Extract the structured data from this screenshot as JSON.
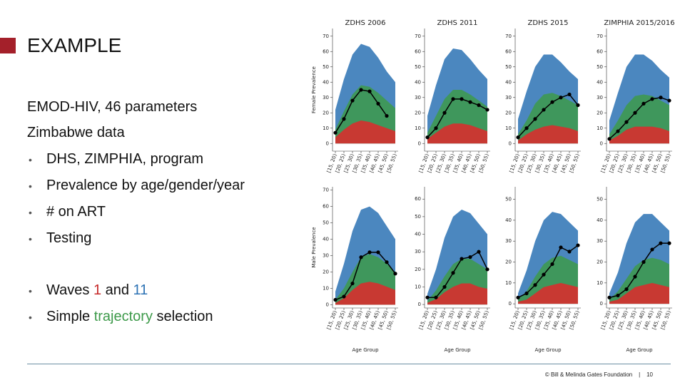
{
  "slide": {
    "title": "EXAMPLE",
    "lines": [
      "EMOD-HIV, 46 parameters",
      "Zimbabwe data"
    ],
    "bullets": [
      "DHS, ZIMPHIA, program",
      "Prevalence by age/gender/year",
      "# on ART",
      "Testing"
    ],
    "waves": [
      "Waves ",
      "1",
      " and ",
      "11"
    ],
    "selection": [
      "Simple ",
      "trajectory",
      " selection"
    ]
  },
  "footer": {
    "org": "© Bill & Melinda Gates Foundation",
    "sep": "|",
    "page": "10"
  },
  "chart_data": [
    {
      "type": "line",
      "title": "ZDHS 2006",
      "ylabel": "Female Prevalence",
      "categories": [
        "[15, 20)",
        "[20, 25)",
        "[25, 30)",
        "[30, 35)",
        "[35, 40)",
        "[40, 45)",
        "[45, 50)",
        "[50, 55)"
      ],
      "ylim": [
        -5,
        75
      ],
      "yticks": [
        0,
        10,
        20,
        30,
        40,
        50,
        60,
        70
      ],
      "series": [
        {
          "kind": "area",
          "color": "#2c72b4",
          "values": [
            22,
            42,
            58,
            65,
            63,
            56,
            47,
            40
          ]
        },
        {
          "kind": "area",
          "color": "#3d9a4a",
          "values": [
            9,
            21,
            32,
            38,
            37,
            33,
            28,
            23
          ]
        },
        {
          "kind": "area",
          "color": "#e0282a",
          "values": [
            4,
            9,
            13,
            15,
            14,
            12,
            10,
            8
          ]
        },
        {
          "kind": "points",
          "color": "#000000",
          "values": [
            7,
            16,
            28,
            35,
            34,
            26,
            18,
            null
          ]
        }
      ]
    },
    {
      "type": "line",
      "title": "ZDHS 2011",
      "categories": [
        "[15, 20)",
        "[20, 25)",
        "[25, 30)",
        "[30, 35)",
        "[35, 40)",
        "[40, 45)",
        "[45, 50)",
        "[50, 55)"
      ],
      "ylim": [
        -5,
        75
      ],
      "yticks": [
        0,
        10,
        20,
        30,
        40,
        50,
        60,
        70
      ],
      "series": [
        {
          "kind": "area",
          "color": "#2c72b4",
          "values": [
            18,
            38,
            55,
            62,
            61,
            55,
            48,
            42
          ]
        },
        {
          "kind": "area",
          "color": "#3d9a4a",
          "values": [
            7,
            18,
            29,
            35,
            35,
            32,
            28,
            24
          ]
        },
        {
          "kind": "area",
          "color": "#e0282a",
          "values": [
            3,
            7,
            11,
            13,
            13,
            12,
            10,
            8
          ]
        },
        {
          "kind": "points",
          "color": "#000000",
          "values": [
            4,
            10,
            20,
            29,
            29,
            27,
            25,
            22
          ]
        }
      ]
    },
    {
      "type": "line",
      "title": "ZDHS 2015",
      "categories": [
        "[15, 20)",
        "[20, 25)",
        "[25, 30)",
        "[30, 35)",
        "[35, 40)",
        "[40, 45)",
        "[45, 50)",
        "[50, 55)"
      ],
      "ylim": [
        -5,
        75
      ],
      "yticks": [
        0,
        10,
        20,
        30,
        40,
        50,
        60,
        70
      ],
      "series": [
        {
          "kind": "area",
          "color": "#2c72b4",
          "values": [
            16,
            34,
            50,
            58,
            58,
            53,
            47,
            42
          ]
        },
        {
          "kind": "area",
          "color": "#3d9a4a",
          "values": [
            6,
            15,
            26,
            32,
            33,
            31,
            28,
            25
          ]
        },
        {
          "kind": "area",
          "color": "#e0282a",
          "values": [
            2,
            6,
            9,
            11,
            12,
            11,
            10,
            8
          ]
        },
        {
          "kind": "points",
          "color": "#000000",
          "values": [
            4,
            10,
            16,
            22,
            27,
            30,
            32,
            25
          ]
        }
      ]
    },
    {
      "type": "line",
      "title": "ZIMPHIA 2015/2016",
      "categories": [
        "[15, 20)",
        "[20, 25)",
        "[25, 30)",
        "[30, 35)",
        "[35, 40)",
        "[40, 45)",
        "[45, 50)",
        "[50, 55)"
      ],
      "ylim": [
        -5,
        75
      ],
      "yticks": [
        0,
        10,
        20,
        30,
        40,
        50,
        60,
        70
      ],
      "series": [
        {
          "kind": "area",
          "color": "#2c72b4",
          "values": [
            15,
            33,
            50,
            58,
            58,
            54,
            48,
            43
          ]
        },
        {
          "kind": "area",
          "color": "#3d9a4a",
          "values": [
            6,
            15,
            25,
            31,
            32,
            31,
            28,
            25
          ]
        },
        {
          "kind": "area",
          "color": "#e0282a",
          "values": [
            2,
            5,
            9,
            11,
            11,
            11,
            10,
            8
          ]
        },
        {
          "kind": "points",
          "color": "#000000",
          "values": [
            3,
            8,
            14,
            20,
            26,
            29,
            30,
            28
          ]
        }
      ]
    },
    {
      "type": "line",
      "ylabel": "Male Prevalence",
      "xlabel": "Age Group",
      "categories": [
        "[15, 20)",
        "[20, 25)",
        "[25, 30)",
        "[30, 35)",
        "[35, 40)",
        "[40, 45)",
        "[45, 50)",
        "[50, 55)"
      ],
      "ylim": [
        -2,
        72
      ],
      "yticks": [
        0,
        10,
        20,
        30,
        40,
        50,
        60,
        70
      ],
      "series": [
        {
          "kind": "area",
          "color": "#2c72b4",
          "values": [
            8,
            25,
            45,
            58,
            60,
            56,
            48,
            40
          ]
        },
        {
          "kind": "area",
          "color": "#3d9a4a",
          "values": [
            3,
            10,
            20,
            29,
            31,
            29,
            25,
            20
          ]
        },
        {
          "kind": "area",
          "color": "#e0282a",
          "values": [
            1,
            4,
            9,
            13,
            14,
            13,
            11,
            9
          ]
        },
        {
          "kind": "points",
          "color": "#000000",
          "values": [
            3,
            5,
            13,
            29,
            32,
            32,
            26,
            19
          ]
        }
      ]
    },
    {
      "type": "line",
      "xlabel": "Age Group",
      "categories": [
        "[15, 20)",
        "[20, 25)",
        "[25, 30)",
        "[30, 35)",
        "[35, 40)",
        "[40, 45)",
        "[45, 50)",
        "[50, 55)"
      ],
      "ylim": [
        -2,
        67
      ],
      "yticks": [
        0,
        10,
        20,
        30,
        40,
        50,
        60
      ],
      "series": [
        {
          "kind": "area",
          "color": "#2c72b4",
          "values": [
            6,
            20,
            38,
            50,
            54,
            52,
            46,
            40
          ]
        },
        {
          "kind": "area",
          "color": "#3d9a4a",
          "values": [
            2,
            8,
            16,
            23,
            26,
            26,
            23,
            20
          ]
        },
        {
          "kind": "area",
          "color": "#e0282a",
          "values": [
            1,
            3,
            7,
            10,
            12,
            12,
            10,
            9
          ]
        },
        {
          "kind": "points",
          "color": "#000000",
          "values": [
            4,
            4,
            10,
            18,
            26,
            27,
            30,
            20
          ]
        }
      ]
    },
    {
      "type": "line",
      "xlabel": "Age Group",
      "categories": [
        "[15, 20)",
        "[20, 25)",
        "[25, 30)",
        "[30, 35)",
        "[35, 40)",
        "[40, 45)",
        "[45, 50)",
        "[50, 55)"
      ],
      "ylim": [
        -2,
        56
      ],
      "yticks": [
        0,
        10,
        20,
        30,
        40,
        50
      ],
      "series": [
        {
          "kind": "area",
          "color": "#2c72b4",
          "values": [
            5,
            16,
            30,
            40,
            44,
            43,
            39,
            35
          ]
        },
        {
          "kind": "area",
          "color": "#3d9a4a",
          "values": [
            2,
            6,
            13,
            19,
            22,
            23,
            21,
            19
          ]
        },
        {
          "kind": "area",
          "color": "#e0282a",
          "values": [
            1,
            2,
            5,
            8,
            9,
            10,
            9,
            8
          ]
        },
        {
          "kind": "points",
          "color": "#000000",
          "values": [
            3,
            5,
            9,
            14,
            19,
            27,
            25,
            28
          ]
        }
      ]
    },
    {
      "type": "line",
      "xlabel": "Age Group",
      "categories": [
        "[15, 20)",
        "[20, 25)",
        "[25, 30)",
        "[30, 35)",
        "[35, 40)",
        "[40, 45)",
        "[45, 50)",
        "[50, 55)"
      ],
      "ylim": [
        -2,
        56
      ],
      "yticks": [
        0,
        10,
        20,
        30,
        40,
        50
      ],
      "series": [
        {
          "kind": "area",
          "color": "#2c72b4",
          "values": [
            5,
            15,
            29,
            39,
            43,
            43,
            39,
            35
          ]
        },
        {
          "kind": "area",
          "color": "#3d9a4a",
          "values": [
            2,
            6,
            12,
            18,
            21,
            22,
            21,
            19
          ]
        },
        {
          "kind": "area",
          "color": "#e0282a",
          "values": [
            1,
            2,
            5,
            8,
            9,
            10,
            9,
            8
          ]
        },
        {
          "kind": "points",
          "color": "#000000",
          "values": [
            3,
            4,
            7,
            13,
            20,
            26,
            29,
            29
          ]
        }
      ]
    }
  ]
}
